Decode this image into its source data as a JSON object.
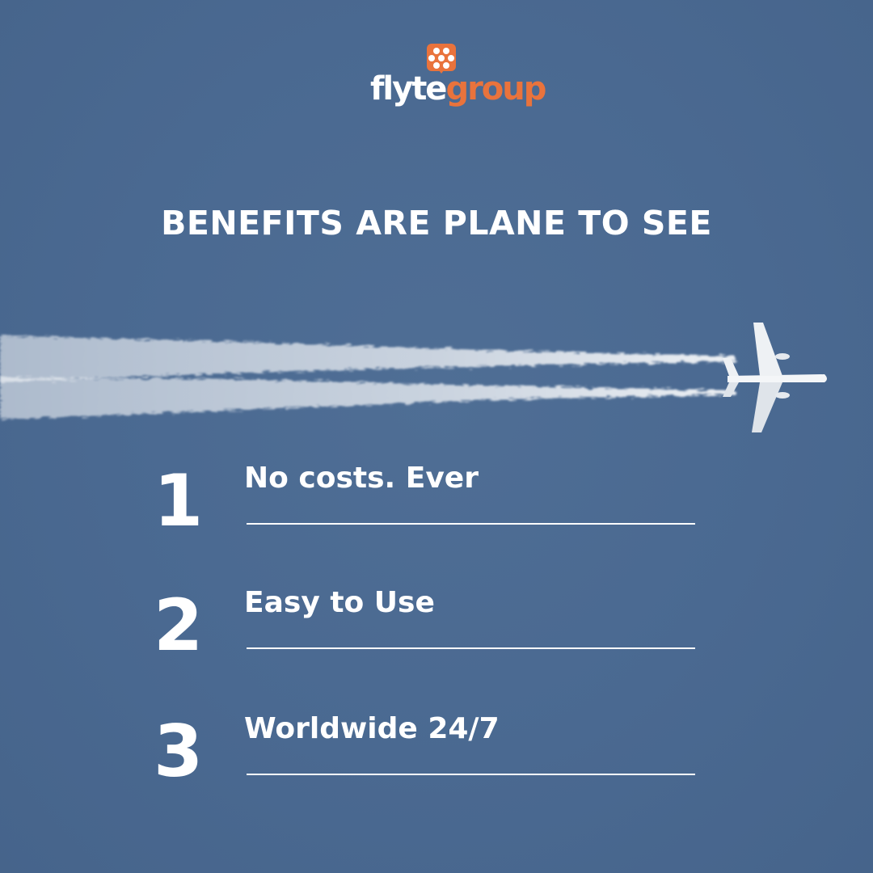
{
  "brand": {
    "name_part1": "flyte",
    "name_part2": "group",
    "accent_color": "#e9733c",
    "icon": "hexagon-dots-logo-icon"
  },
  "headline": "BENEFITS ARE PLANE TO SEE",
  "illustration": {
    "icon": "airplane-icon",
    "description_colors": {
      "sky": "#4a6991",
      "contrail": "#ffffff"
    }
  },
  "benefits": [
    {
      "number": "1",
      "label": "No costs. Ever"
    },
    {
      "number": "2",
      "label": "Easy to Use"
    },
    {
      "number": "3",
      "label": "Worldwide 24/7"
    }
  ]
}
